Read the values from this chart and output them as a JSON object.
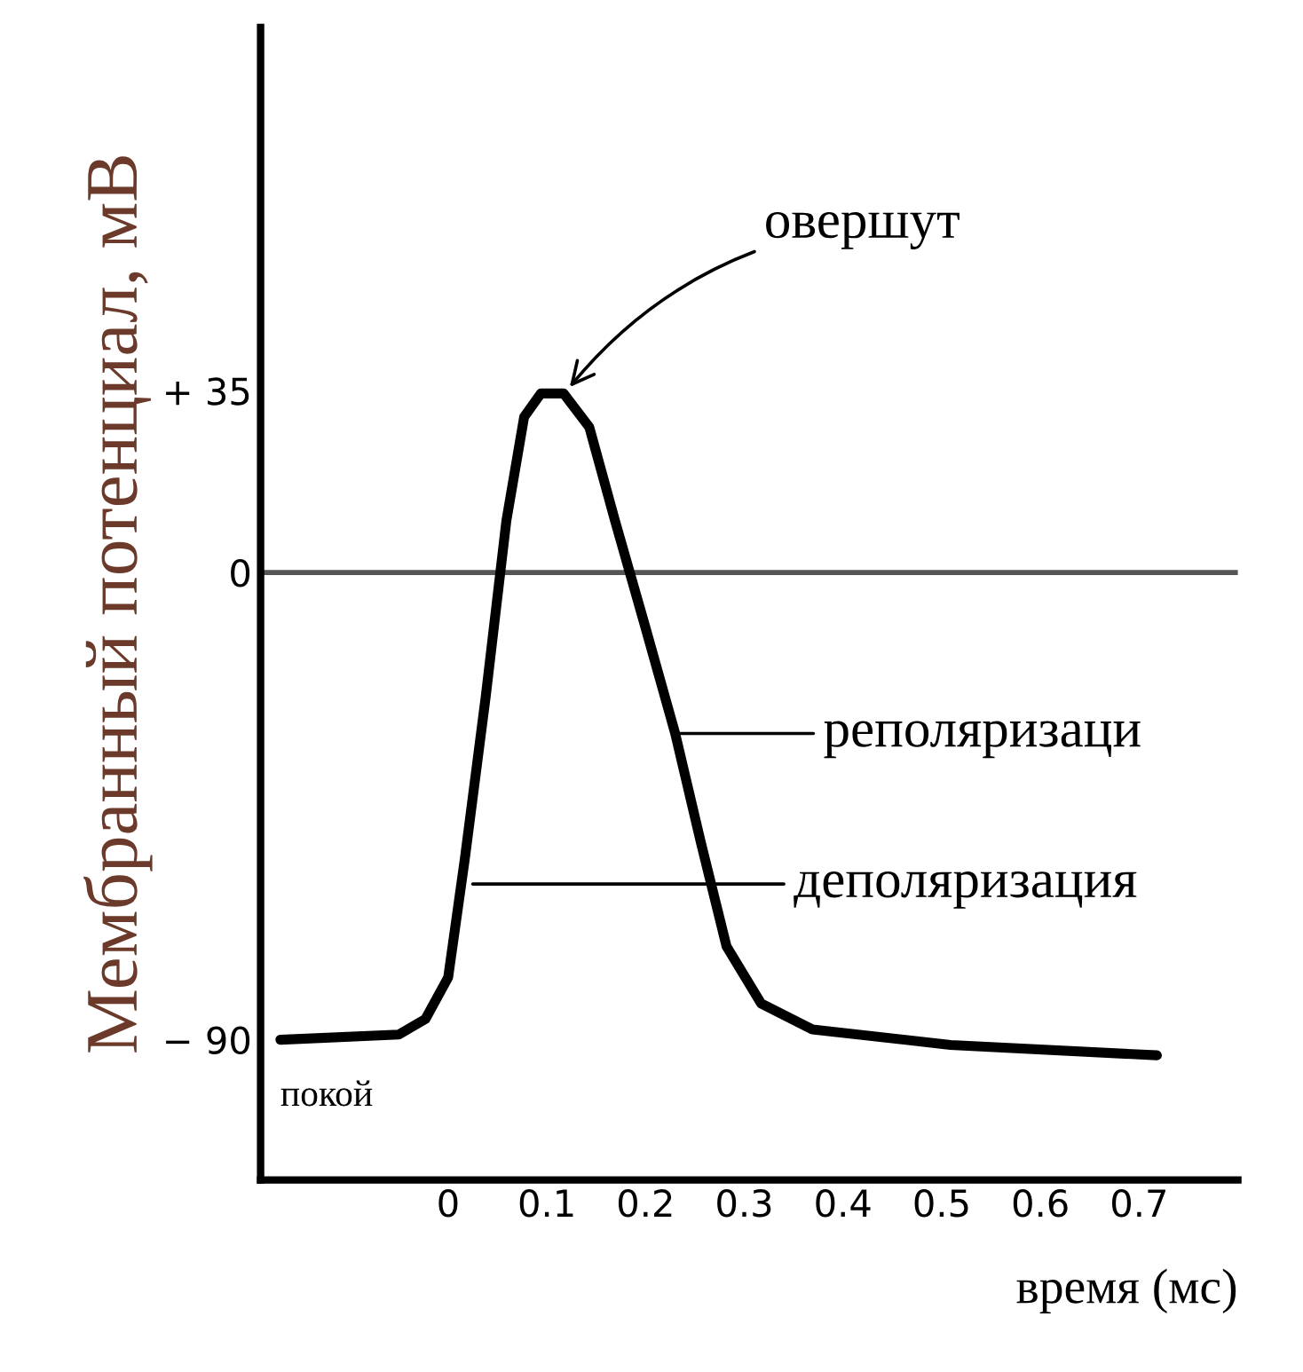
{
  "chart_data": {
    "type": "line",
    "xlabel": "время (мс)",
    "ylabel": "Мембранный потенциал, мВ",
    "x": [
      -0.17,
      -0.05,
      -0.023,
      0,
      0.017,
      0.038,
      0.059,
      0.077,
      0.094,
      0.117,
      0.143,
      0.169,
      0.199,
      0.23,
      0.256,
      0.282,
      0.317,
      0.369,
      0.509,
      0.718
    ],
    "series": [
      {
        "color": "#000000",
        "values": [
          -90,
          -89,
          -86,
          -78,
          -55,
          -24,
          10,
          30,
          34.5,
          34.5,
          28,
          10,
          -10,
          -31,
          -52,
          -72,
          -83,
          -88,
          -91,
          -93
        ]
      }
    ],
    "xlim": [
      -0.19,
      0.8
    ],
    "ylim": [
      -117,
      105
    ],
    "xticks": [
      0,
      0.1,
      0.2,
      0.3,
      0.4,
      0.5,
      0.6,
      0.7
    ],
    "yticks": [
      {
        "value": 35,
        "label": "+ 35"
      },
      0,
      {
        "value": -90,
        "label": "− 90"
      }
    ],
    "ref_lines": [
      {
        "axis": "y",
        "value": 0,
        "color": "#555555"
      }
    ],
    "annotations": [
      {
        "text": "овершут",
        "x": 0.12,
        "y": 35
      },
      {
        "text": "реполяризаци",
        "x": 0.23,
        "y": -31
      },
      {
        "text": "деполяризация",
        "x": 0.02,
        "y": -60
      },
      {
        "text": "покой",
        "x": -0.15,
        "y": -90
      }
    ],
    "grid": false,
    "legend": false,
    "marker": "none",
    "line_style": "solid"
  }
}
